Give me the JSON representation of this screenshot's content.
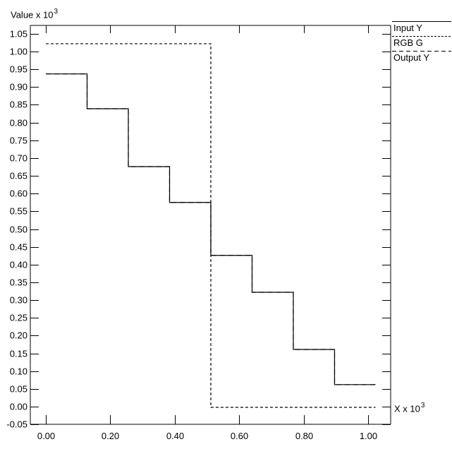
{
  "y_axis": {
    "label_prefix": "Value x 10",
    "label_exponent": "3",
    "tick_labels": [
      "1.05",
      "1.00",
      "0.95",
      "0.90",
      "0.85",
      "0.80",
      "0.75",
      "0.70",
      "0.65",
      "0.60",
      "0.55",
      "0.50",
      "0.45",
      "0.40",
      "0.35",
      "0.30",
      "0.25",
      "0.20",
      "0.15",
      "0.10",
      "0.05",
      "0.00",
      "-0.05"
    ]
  },
  "x_axis": {
    "label_prefix": "X x 10",
    "label_exponent": "3",
    "tick_labels": [
      "0.00",
      "0.20",
      "0.40",
      "0.60",
      "0.80",
      "1.00"
    ]
  },
  "legend": {
    "items": [
      {
        "label": "Input Y",
        "style": "solid"
      },
      {
        "label": "RGB G",
        "style": "dotted"
      },
      {
        "label": "Output Y",
        "style": "dashed"
      }
    ]
  },
  "colors": {
    "foreground": "#000000",
    "background": "#ffffff"
  },
  "chart_data": {
    "type": "line",
    "subtype": "step",
    "title": "",
    "xlabel": "X x 10^3",
    "ylabel": "Value x 10^3",
    "xlim": [
      -0.048,
      1.07
    ],
    "ylim": [
      -0.05,
      1.074
    ],
    "grid": false,
    "legend_position": "top-right-outside",
    "x_ticks": [
      0.0,
      0.2,
      0.4,
      0.6,
      0.8,
      1.0
    ],
    "y_ticks": [
      1.05,
      1.0,
      0.95,
      0.9,
      0.85,
      0.8,
      0.75,
      0.7,
      0.65,
      0.6,
      0.55,
      0.5,
      0.45,
      0.4,
      0.35,
      0.3,
      0.25,
      0.2,
      0.15,
      0.1,
      0.05,
      0.0,
      -0.05
    ],
    "series": [
      {
        "name": "Input Y",
        "style": "solid",
        "points": [
          [
            0.0,
            0.937
          ],
          [
            0.128,
            0.937
          ],
          [
            0.128,
            0.839
          ],
          [
            0.256,
            0.839
          ],
          [
            0.256,
            0.676
          ],
          [
            0.384,
            0.676
          ],
          [
            0.384,
            0.575
          ],
          [
            0.512,
            0.575
          ],
          [
            0.512,
            0.426
          ],
          [
            0.64,
            0.426
          ],
          [
            0.64,
            0.322
          ],
          [
            0.768,
            0.322
          ],
          [
            0.768,
            0.161
          ],
          [
            0.896,
            0.161
          ],
          [
            0.896,
            0.062
          ],
          [
            1.023,
            0.062
          ]
        ]
      },
      {
        "name": "RGB G",
        "style": "dotted",
        "points": [
          [
            0.0,
            1.022
          ],
          [
            0.512,
            1.022
          ],
          [
            0.512,
            -0.002
          ],
          [
            1.023,
            -0.002
          ]
        ]
      },
      {
        "name": "Output Y",
        "style": "dashed",
        "points": [
          [
            0.0,
            0.937
          ],
          [
            0.128,
            0.937
          ],
          [
            0.128,
            0.839
          ],
          [
            0.256,
            0.839
          ],
          [
            0.256,
            0.676
          ],
          [
            0.384,
            0.676
          ],
          [
            0.384,
            0.575
          ],
          [
            0.512,
            0.575
          ],
          [
            0.512,
            0.426
          ],
          [
            0.64,
            0.426
          ],
          [
            0.64,
            0.322
          ],
          [
            0.768,
            0.322
          ],
          [
            0.768,
            0.161
          ],
          [
            0.896,
            0.161
          ],
          [
            0.896,
            0.062
          ],
          [
            1.023,
            0.062
          ]
        ]
      }
    ]
  }
}
